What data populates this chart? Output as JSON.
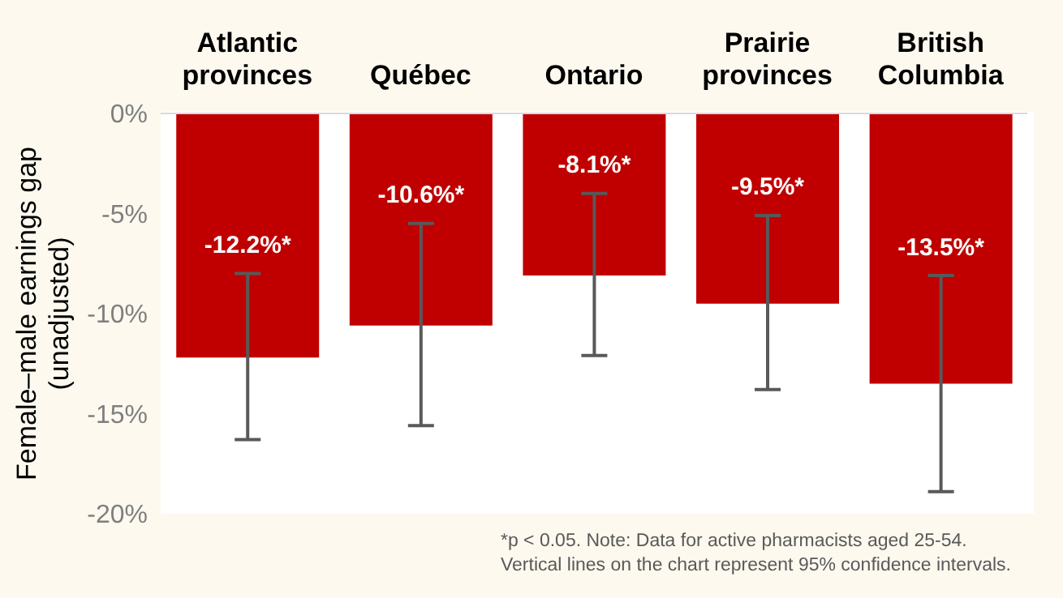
{
  "chart_data": {
    "type": "bar",
    "ylabel": "Female–male earnings gap (unadjusted)",
    "categories": [
      "Atlantic provinces",
      "Québec",
      "Ontario",
      "Prairie provinces",
      "British Columbia"
    ],
    "values": [
      -12.2,
      -10.6,
      -8.1,
      -9.5,
      -13.5
    ],
    "color": "#c00000",
    "errors": [
      [
        -16.3,
        -8.0
      ],
      [
        -15.6,
        -5.5
      ],
      [
        -12.1,
        -4.0
      ],
      [
        -13.8,
        -5.1
      ],
      [
        -18.9,
        -8.1
      ]
    ],
    "value_labels": [
      "-12.2%*",
      "-10.6%*",
      "-8.1%*",
      "-9.5%*",
      "-13.5%*"
    ],
    "ylim": [
      -20,
      0
    ],
    "yticks": [
      {
        "value": 0,
        "label": "0%"
      },
      {
        "value": -5,
        "label": "-5%"
      },
      {
        "value": -10,
        "label": "-10%"
      },
      {
        "value": -15,
        "label": "-15%"
      },
      {
        "value": -20,
        "label": "-20%"
      }
    ],
    "grid": false,
    "legend": false,
    "annotations": [
      "*p < 0.05. Note: Data for active pharmacists aged 25-54.",
      "Vertical lines on the chart represent 95% confidence intervals."
    ]
  }
}
